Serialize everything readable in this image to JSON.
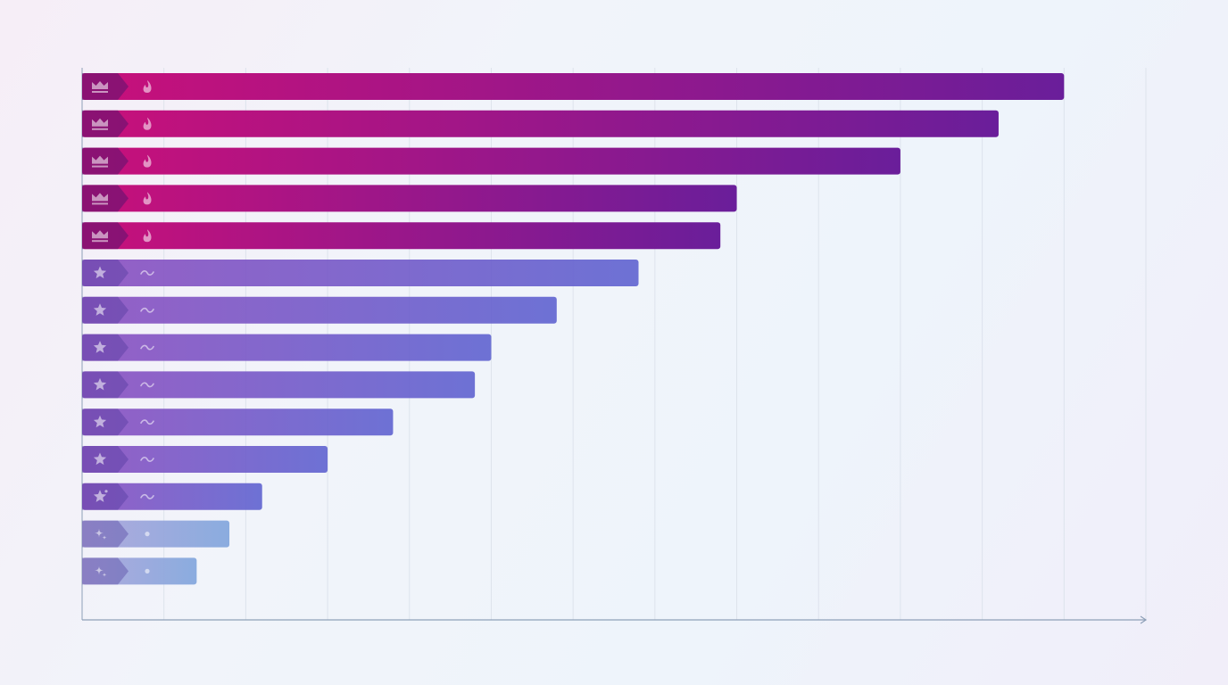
{
  "chart_data": {
    "type": "bar",
    "orientation": "horizontal",
    "title": "",
    "xlabel": "",
    "ylabel": "",
    "categories": [
      "",
      "",
      "",
      "",
      "",
      "",
      "",
      "",
      "",
      "",
      "",
      "",
      "",
      ""
    ],
    "values": [
      120,
      112,
      100,
      80,
      78,
      68,
      58,
      50,
      48,
      38,
      30,
      22,
      18,
      14
    ],
    "xlim": [
      0,
      130
    ],
    "grid": true,
    "tiers": [
      "crown",
      "crown",
      "crown",
      "crown",
      "crown",
      "star",
      "star",
      "star",
      "star",
      "star",
      "star",
      "star-sparkle",
      "sparkle",
      "sparkle"
    ],
    "tier_icons": {
      "crown": {
        "badge": "crown-icon",
        "marker": "flame-icon"
      },
      "star": {
        "badge": "star-icon",
        "marker": "wave-icon"
      },
      "star-sparkle": {
        "badge": "star-sparkle-icon",
        "marker": "wave-icon"
      },
      "sparkle": {
        "badge": "sparkle-icon",
        "marker": "dot-icon"
      }
    },
    "colors": {
      "crown_start": "#c8107a",
      "crown_end": "#6a1e9a",
      "star_start": "#8a4fc0",
      "star_end": "#5f63d0",
      "light_start": "#a9a2d9",
      "light_end": "#7fa4dc",
      "grid": "#dde3ec",
      "axis": "#8ea0b8"
    }
  }
}
